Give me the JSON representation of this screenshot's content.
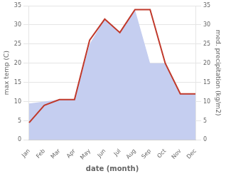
{
  "chart_data": {
    "type": "line",
    "xlabel": "date (month)",
    "ylabel": "max temp (C)",
    "y2label": "med. precipitation (kg/m2)",
    "categories": [
      "Jan",
      "Feb",
      "Mar",
      "Apr",
      "May",
      "Jun",
      "Jul",
      "Aug",
      "Sep",
      "Oct",
      "Nov",
      "Dec"
    ],
    "series": [
      {
        "type": "area",
        "color": "#c5cef0",
        "axis": "y2",
        "values": [
          9.5,
          10.0,
          10.5,
          10.5,
          25.0,
          31.5,
          28.0,
          34.0,
          20.0,
          20.0,
          12.0,
          12.0
        ]
      },
      {
        "type": "line",
        "color": "#c0392b",
        "values": [
          4.5,
          9.0,
          10.5,
          10.5,
          26.0,
          31.5,
          28.0,
          34.0,
          34.0,
          20.0,
          12.0,
          12.0
        ]
      }
    ],
    "ylim": [
      0,
      35
    ],
    "yticks": [
      0,
      5,
      10,
      15,
      20,
      25,
      30,
      35
    ],
    "y2lim": [
      0,
      35
    ],
    "y2ticks": [
      0,
      5,
      10,
      15,
      20,
      25,
      30,
      35
    ],
    "grid": true
  }
}
